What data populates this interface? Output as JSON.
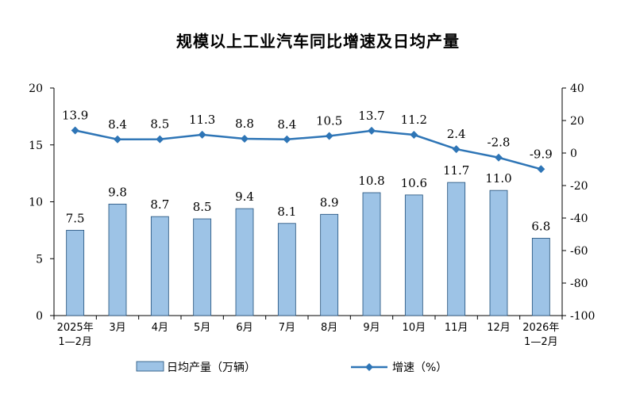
{
  "chart_data": {
    "type": "bar+line",
    "title": "规模以上工业汽车同比增速及日均产量",
    "categories": [
      [
        "2025年",
        "1—2月"
      ],
      [
        "3月"
      ],
      [
        "4月"
      ],
      [
        "5月"
      ],
      [
        "6月"
      ],
      [
        "7月"
      ],
      [
        "8月"
      ],
      [
        "9月"
      ],
      [
        "10月"
      ],
      [
        "11月"
      ],
      [
        "12月"
      ],
      [
        "2026年",
        "1—2月"
      ]
    ],
    "series": [
      {
        "name": "日均产量（万辆）",
        "type": "bar",
        "axis": "left",
        "values": [
          7.5,
          9.8,
          8.7,
          8.5,
          9.4,
          8.1,
          8.9,
          10.8,
          10.6,
          11.7,
          11.0,
          6.8
        ],
        "labels": [
          "7.5",
          "9.8",
          "8.7",
          "8.5",
          "9.4",
          "8.1",
          "8.9",
          "10.8",
          "10.6",
          "11.7",
          "11.0",
          "6.8"
        ],
        "color": "#9DC3E6"
      },
      {
        "name": "增速（%）",
        "type": "line",
        "axis": "right",
        "values": [
          13.9,
          8.4,
          8.5,
          11.3,
          8.8,
          8.4,
          10.5,
          13.7,
          11.2,
          2.4,
          -2.8,
          -9.9
        ],
        "labels": [
          "13.9",
          "8.4",
          "8.5",
          "11.3",
          "8.8",
          "8.4",
          "10.5",
          "13.7",
          "11.2",
          "2.4",
          "-2.8",
          "-9.9"
        ],
        "color": "#2E75B6"
      }
    ],
    "left_axis": {
      "min": 0,
      "max": 20,
      "ticks": [
        "0",
        "5",
        "10",
        "15",
        "20"
      ]
    },
    "right_axis": {
      "min": -100,
      "max": 40,
      "ticks": [
        "-100",
        "-80",
        "-60",
        "-40",
        "-20",
        "0",
        "20",
        "40"
      ]
    },
    "legend_position": "bottom",
    "grid": false
  },
  "colors": {
    "bar_fill": "#9DC3E6",
    "bar_stroke": "#1F4E79",
    "line": "#2E75B6",
    "axis": "#000000"
  }
}
